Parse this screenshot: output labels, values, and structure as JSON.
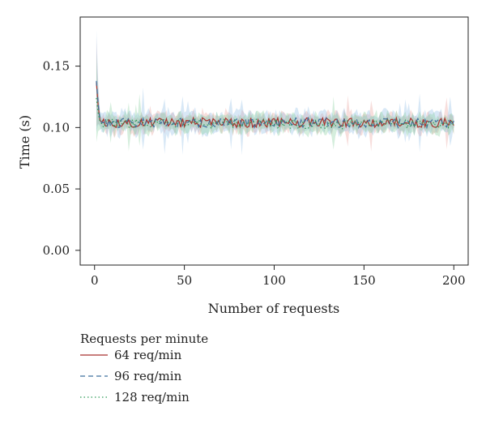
{
  "chart_data": {
    "type": "line",
    "title": "",
    "xlabel": "Number of requests",
    "ylabel": "Time (s)",
    "xlim": [
      -8,
      208
    ],
    "ylim": [
      -0.012,
      0.19
    ],
    "xticks": [
      0,
      50,
      100,
      150,
      200
    ],
    "xtick_labels": [
      "0",
      "50",
      "100",
      "150",
      "200"
    ],
    "yticks": [
      0.0,
      0.05,
      0.1,
      0.15
    ],
    "ytick_labels": [
      "0.00",
      "0.05",
      "0.10",
      "0.15"
    ],
    "grid": false,
    "legend": {
      "title": "Requests per minute",
      "placement": "below-left"
    },
    "x_start": 1,
    "x_end": 200,
    "series": [
      {
        "name": "64 req/min",
        "color": "#a8322d",
        "band_color": "#e8a09c",
        "dash": "solid",
        "first_values": [
          0.137,
          0.118,
          0.106,
          0.104
        ],
        "steady_mean": 0.104,
        "spread": 0.004,
        "band_halfwidth": 0.006
      },
      {
        "name": "96 req/min",
        "color": "#3f6f9e",
        "band_color": "#8fbde6",
        "dash": "dashed",
        "first_values": [
          0.138,
          0.12,
          0.107,
          0.104
        ],
        "steady_mean": 0.104,
        "spread": 0.004,
        "band_halfwidth": 0.007
      },
      {
        "name": "128 req/min",
        "color": "#2e9a58",
        "band_color": "#86cf9f",
        "dash": "dotted",
        "first_values": [
          0.124,
          0.112,
          0.105,
          0.103
        ],
        "steady_mean": 0.103,
        "spread": 0.004,
        "band_halfwidth": 0.006
      }
    ]
  }
}
